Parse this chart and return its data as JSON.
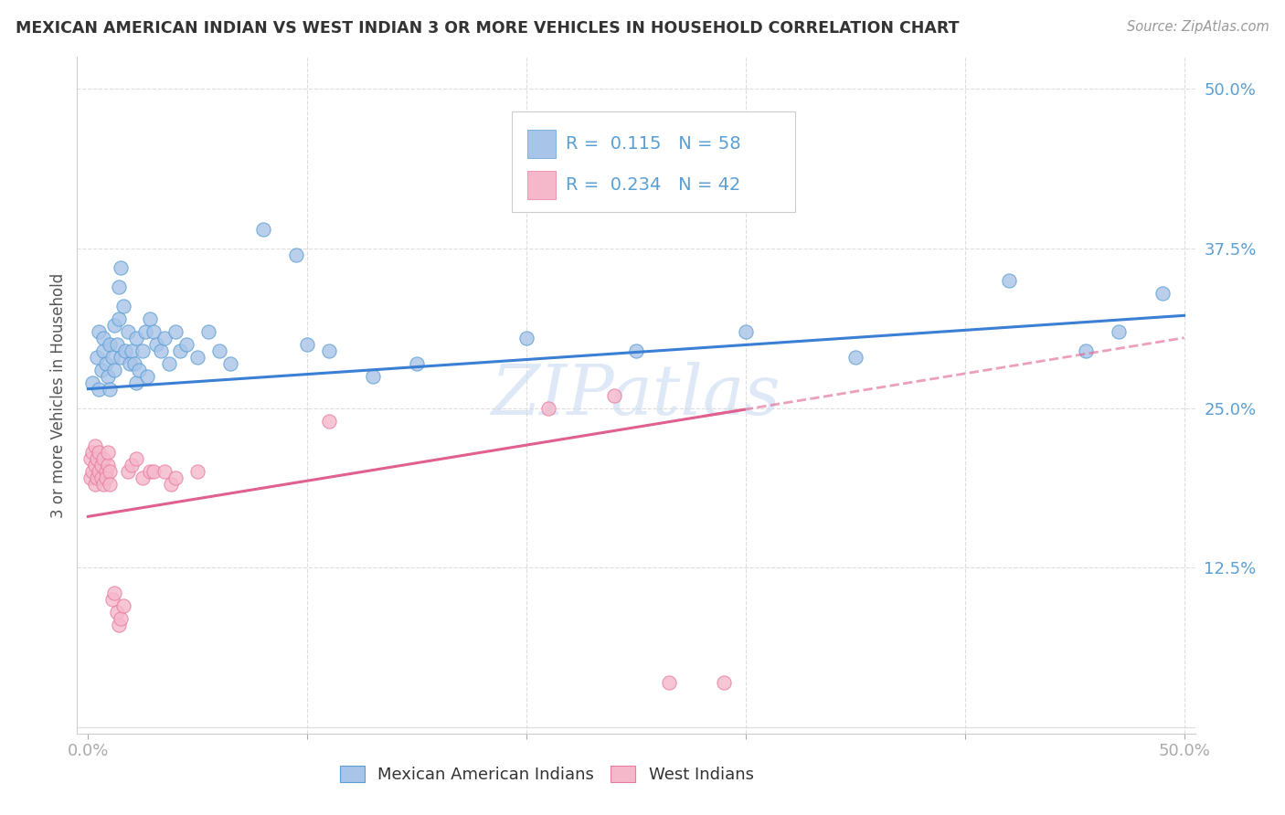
{
  "title": "MEXICAN AMERICAN INDIAN VS WEST INDIAN 3 OR MORE VEHICLES IN HOUSEHOLD CORRELATION CHART",
  "source": "Source: ZipAtlas.com",
  "ylabel": "3 or more Vehicles in Household",
  "legend1_label": "Mexican American Indians",
  "legend2_label": "West Indians",
  "R1": "0.115",
  "N1": "58",
  "R2": "0.234",
  "N2": "42",
  "color_blue_fill": "#a8c4e8",
  "color_blue_edge": "#5a9fd4",
  "color_pink_fill": "#f5b8cb",
  "color_pink_edge": "#e87ca0",
  "color_line_blue": "#3a7fd4",
  "color_line_pink": "#e06090",
  "color_axis_text": "#5a9fd4",
  "color_title": "#333333",
  "color_source": "#999999",
  "color_grid": "#dddddd",
  "watermark_text": "ZIPatlas",
  "watermark_color": "#c8daf0",
  "blue_points_x": [
    0.002,
    0.004,
    0.005,
    0.005,
    0.006,
    0.007,
    0.007,
    0.008,
    0.009,
    0.01,
    0.01,
    0.011,
    0.012,
    0.012,
    0.013,
    0.014,
    0.014,
    0.015,
    0.015,
    0.016,
    0.017,
    0.018,
    0.019,
    0.02,
    0.021,
    0.022,
    0.022,
    0.023,
    0.025,
    0.026,
    0.027,
    0.028,
    0.03,
    0.031,
    0.033,
    0.035,
    0.037,
    0.04,
    0.042,
    0.045,
    0.05,
    0.055,
    0.06,
    0.065,
    0.08,
    0.095,
    0.1,
    0.11,
    0.13,
    0.15,
    0.2,
    0.25,
    0.3,
    0.35,
    0.42,
    0.455,
    0.47,
    0.49
  ],
  "blue_points_y": [
    0.27,
    0.29,
    0.31,
    0.265,
    0.28,
    0.295,
    0.305,
    0.285,
    0.275,
    0.3,
    0.265,
    0.29,
    0.315,
    0.28,
    0.3,
    0.32,
    0.345,
    0.36,
    0.29,
    0.33,
    0.295,
    0.31,
    0.285,
    0.295,
    0.285,
    0.305,
    0.27,
    0.28,
    0.295,
    0.31,
    0.275,
    0.32,
    0.31,
    0.3,
    0.295,
    0.305,
    0.285,
    0.31,
    0.295,
    0.3,
    0.29,
    0.31,
    0.295,
    0.285,
    0.39,
    0.37,
    0.3,
    0.295,
    0.275,
    0.285,
    0.305,
    0.295,
    0.31,
    0.29,
    0.35,
    0.295,
    0.31,
    0.34
  ],
  "pink_points_x": [
    0.001,
    0.001,
    0.002,
    0.002,
    0.003,
    0.003,
    0.003,
    0.004,
    0.004,
    0.005,
    0.005,
    0.006,
    0.006,
    0.007,
    0.007,
    0.008,
    0.008,
    0.009,
    0.009,
    0.01,
    0.01,
    0.011,
    0.012,
    0.013,
    0.014,
    0.015,
    0.016,
    0.018,
    0.02,
    0.022,
    0.025,
    0.028,
    0.03,
    0.035,
    0.038,
    0.04,
    0.05,
    0.11,
    0.21,
    0.24,
    0.265,
    0.29
  ],
  "pink_points_y": [
    0.21,
    0.195,
    0.215,
    0.2,
    0.19,
    0.205,
    0.22,
    0.195,
    0.21,
    0.2,
    0.215,
    0.195,
    0.205,
    0.19,
    0.21,
    0.2,
    0.195,
    0.205,
    0.215,
    0.2,
    0.19,
    0.1,
    0.105,
    0.09,
    0.08,
    0.085,
    0.095,
    0.2,
    0.205,
    0.21,
    0.195,
    0.2,
    0.2,
    0.2,
    0.19,
    0.195,
    0.2,
    0.24,
    0.25,
    0.26,
    0.035,
    0.035
  ]
}
